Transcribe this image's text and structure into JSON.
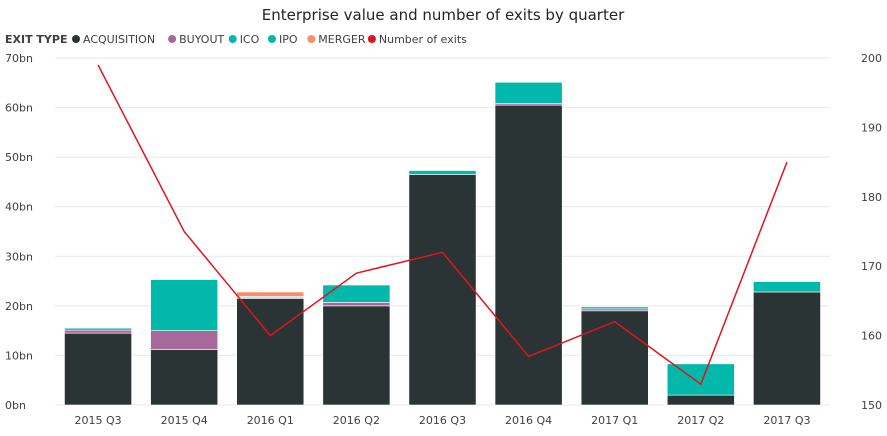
{
  "chart_data": {
    "type": "bar",
    "title": "Enterprise value and number of exits by quarter",
    "legend_title": "EXIT TYPE",
    "legend_position": "top-left",
    "categories": [
      "2015 Q3",
      "2015 Q4",
      "2016 Q1",
      "2016 Q2",
      "2016 Q3",
      "2016 Q4",
      "2017 Q1",
      "2017 Q2",
      "2017 Q3"
    ],
    "series": [
      {
        "name": "ACQUISITION",
        "color": "#2b3434",
        "values": [
          14.5,
          11.2,
          21.5,
          20.0,
          46.5,
          60.5,
          19.0,
          2.0,
          22.8
        ]
      },
      {
        "name": "BUYOUT",
        "color": "#a66999",
        "values": [
          0.6,
          3.8,
          0.2,
          0.7,
          0.0,
          0.3,
          0.4,
          0.0,
          0.0
        ]
      },
      {
        "name": "ICO",
        "color": "#01b8aa",
        "values": [
          0.4,
          10.3,
          0.2,
          3.5,
          0.8,
          4.3,
          0.4,
          6.3,
          2.1
        ]
      },
      {
        "name": "IPO",
        "color": "#01b8aa",
        "values": [
          0.0,
          0.0,
          0.0,
          0.0,
          0.0,
          0.0,
          0.0,
          0.0,
          0.0
        ]
      },
      {
        "name": "MERGER",
        "color": "#fd8c6b",
        "values": [
          0.1,
          0.0,
          0.9,
          0.0,
          0.0,
          0.0,
          0.0,
          0.0,
          0.0
        ]
      }
    ],
    "line_series": {
      "name": "Number of exits",
      "color": "#e0141e",
      "values": [
        199,
        175,
        160,
        169,
        172,
        157,
        162,
        153,
        185
      ]
    },
    "y_left": {
      "ticks": [
        "0bn",
        "10bn",
        "20bn",
        "30bn",
        "40bn",
        "50bn",
        "60bn",
        "70bn"
      ],
      "ylim": [
        0,
        70
      ]
    },
    "y_right": {
      "ticks": [
        "150",
        "160",
        "170",
        "180",
        "190",
        "200"
      ],
      "ylim": [
        150,
        200
      ]
    },
    "grid": true
  }
}
